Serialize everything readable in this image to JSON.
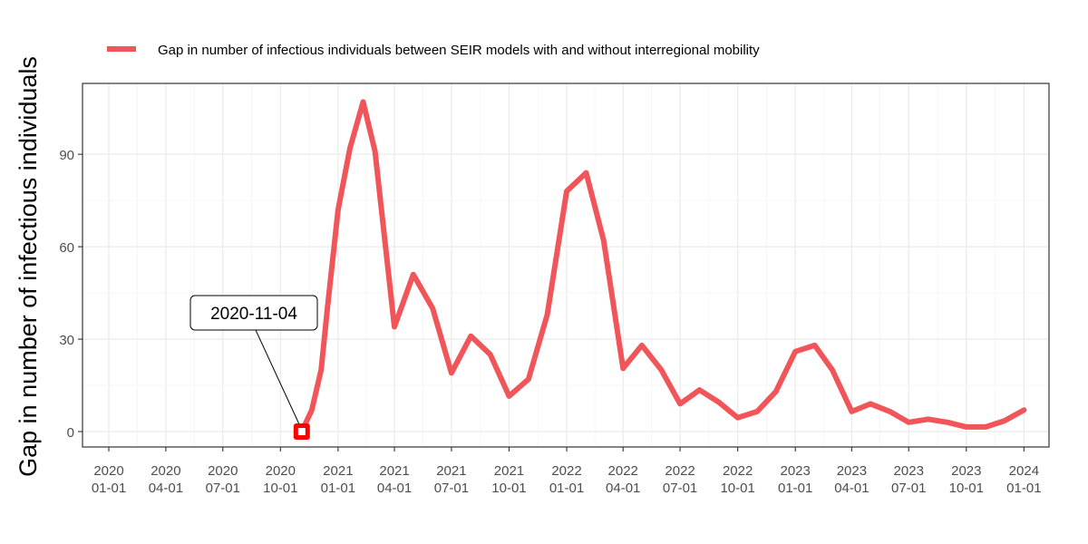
{
  "chart_data": {
    "type": "line",
    "ylabel": "Gap in number of infectious individuals",
    "xlabel": "",
    "y_ticks": [
      0,
      30,
      60,
      90
    ],
    "ylim": [
      -5,
      113
    ],
    "xlim": [
      "2019-11-20",
      "2024-02-10"
    ],
    "x_ticks": [
      {
        "date": "2020-01-01",
        "line1": "2020",
        "line2": "01-01"
      },
      {
        "date": "2020-04-01",
        "line1": "2020",
        "line2": "04-01"
      },
      {
        "date": "2020-07-01",
        "line1": "2020",
        "line2": "07-01"
      },
      {
        "date": "2020-10-01",
        "line1": "2020",
        "line2": "10-01"
      },
      {
        "date": "2021-01-01",
        "line1": "2021",
        "line2": "01-01"
      },
      {
        "date": "2021-04-01",
        "line1": "2021",
        "line2": "04-01"
      },
      {
        "date": "2021-07-01",
        "line1": "2021",
        "line2": "07-01"
      },
      {
        "date": "2021-10-01",
        "line1": "2021",
        "line2": "10-01"
      },
      {
        "date": "2022-01-01",
        "line1": "2022",
        "line2": "01-01"
      },
      {
        "date": "2022-04-01",
        "line1": "2022",
        "line2": "04-01"
      },
      {
        "date": "2022-07-01",
        "line1": "2022",
        "line2": "07-01"
      },
      {
        "date": "2022-10-01",
        "line1": "2022",
        "line2": "10-01"
      },
      {
        "date": "2023-01-01",
        "line1": "2023",
        "line2": "01-01"
      },
      {
        "date": "2023-04-01",
        "line1": "2023",
        "line2": "04-01"
      },
      {
        "date": "2023-07-01",
        "line1": "2023",
        "line2": "07-01"
      },
      {
        "date": "2023-10-01",
        "line1": "2023",
        "line2": "10-01"
      },
      {
        "date": "2024-01-01",
        "line1": "2024",
        "line2": "01-01"
      }
    ],
    "grid": true,
    "legend_position": "top",
    "series": [
      {
        "name": "Gap in number of infectious individuals between SEIR models with and without interregional mobility",
        "color": "#f0555a",
        "points": [
          {
            "date": "2020-11-04",
            "value": 0
          },
          {
            "date": "2020-11-20",
            "value": 7
          },
          {
            "date": "2020-12-05",
            "value": 20
          },
          {
            "date": "2020-12-15",
            "value": 40
          },
          {
            "date": "2021-01-01",
            "value": 72
          },
          {
            "date": "2021-01-20",
            "value": 92
          },
          {
            "date": "2021-02-10",
            "value": 107
          },
          {
            "date": "2021-03-01",
            "value": 91
          },
          {
            "date": "2021-04-01",
            "value": 34
          },
          {
            "date": "2021-05-01",
            "value": 51
          },
          {
            "date": "2021-06-01",
            "value": 40
          },
          {
            "date": "2021-07-01",
            "value": 19
          },
          {
            "date": "2021-08-01",
            "value": 31
          },
          {
            "date": "2021-09-01",
            "value": 25
          },
          {
            "date": "2021-10-01",
            "value": 11.5
          },
          {
            "date": "2021-11-01",
            "value": 17
          },
          {
            "date": "2021-12-01",
            "value": 38
          },
          {
            "date": "2022-01-01",
            "value": 78
          },
          {
            "date": "2022-02-01",
            "value": 84
          },
          {
            "date": "2022-03-01",
            "value": 62
          },
          {
            "date": "2022-04-01",
            "value": 20.5
          },
          {
            "date": "2022-05-01",
            "value": 28
          },
          {
            "date": "2022-06-01",
            "value": 20
          },
          {
            "date": "2022-07-01",
            "value": 9
          },
          {
            "date": "2022-08-01",
            "value": 13.5
          },
          {
            "date": "2022-09-01",
            "value": 9.5
          },
          {
            "date": "2022-10-01",
            "value": 4.5
          },
          {
            "date": "2022-11-01",
            "value": 6.5
          },
          {
            "date": "2022-12-01",
            "value": 13
          },
          {
            "date": "2023-01-01",
            "value": 26
          },
          {
            "date": "2023-02-01",
            "value": 28
          },
          {
            "date": "2023-03-01",
            "value": 20
          },
          {
            "date": "2023-04-01",
            "value": 6.5
          },
          {
            "date": "2023-05-01",
            "value": 9
          },
          {
            "date": "2023-06-01",
            "value": 6.5
          },
          {
            "date": "2023-07-01",
            "value": 3
          },
          {
            "date": "2023-08-01",
            "value": 4
          },
          {
            "date": "2023-09-01",
            "value": 3
          },
          {
            "date": "2023-10-01",
            "value": 1.5
          },
          {
            "date": "2023-11-01",
            "value": 1.5
          },
          {
            "date": "2023-12-01",
            "value": 3.5
          },
          {
            "date": "2024-01-01",
            "value": 7
          }
        ]
      }
    ],
    "annotations": [
      {
        "text": "2020-11-04",
        "date": "2020-11-04",
        "value": 0,
        "marker_color": "#ff0000"
      }
    ]
  }
}
